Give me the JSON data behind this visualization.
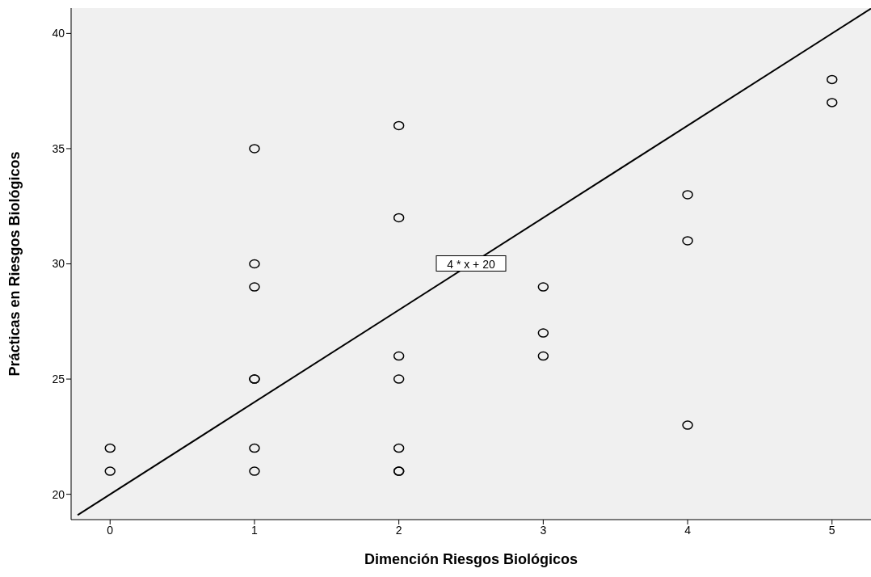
{
  "chart_data": {
    "type": "scatter",
    "xlabel": "Dimención Riesgos Biológicos",
    "ylabel": "Prácticas en Riesgos Biológicos",
    "xlim": [
      -0.27,
      5.27
    ],
    "ylim": [
      18.9,
      41.1
    ],
    "xticks": [
      0,
      1,
      2,
      3,
      4,
      5
    ],
    "yticks": [
      20,
      25,
      30,
      35,
      40
    ],
    "grid": false,
    "legend": false,
    "series": [
      {
        "marker": "circle",
        "color": "#000000",
        "x": [
          0,
          0,
          1,
          1,
          1,
          1,
          1,
          1,
          1,
          2,
          2,
          2,
          2,
          2,
          2,
          2,
          3,
          3,
          3,
          4,
          4,
          4,
          5,
          5
        ],
        "values": [
          22,
          21,
          35,
          30,
          29,
          25,
          25,
          22,
          21,
          36,
          32,
          26,
          25,
          22,
          21,
          21,
          29,
          27,
          26,
          33,
          31,
          23,
          38,
          37
        ]
      },
      {
        "type": "line",
        "marker": "none",
        "color": "#000000",
        "x": [
          -0.225,
          5.27
        ],
        "values": [
          19.1,
          41.08
        ]
      }
    ],
    "annotations": [
      {
        "text": "4 * x + 20",
        "x": 2.5,
        "y": 30
      }
    ]
  }
}
